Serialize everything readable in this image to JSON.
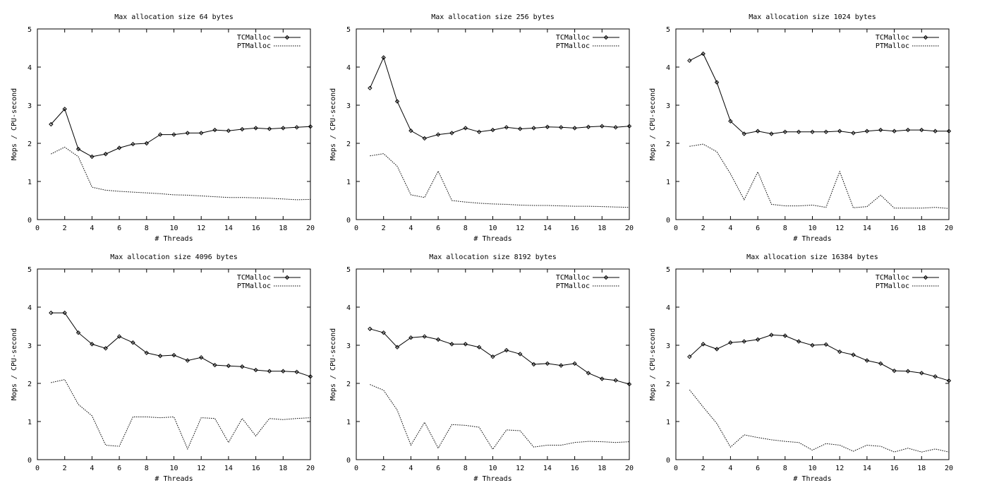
{
  "chart_data": [
    {
      "type": "line",
      "title": "Max allocation size 64 bytes",
      "xlabel": "# Threads",
      "ylabel": "Mops / CPU-second",
      "xlim": [
        0,
        20
      ],
      "ylim": [
        0,
        5
      ],
      "xticks": [
        "0",
        "2",
        "4",
        "6",
        "8",
        "10",
        "12",
        "14",
        "16",
        "18",
        "20"
      ],
      "yticks": [
        "0",
        "1",
        "2",
        "3",
        "4",
        "5"
      ],
      "legend_position": "top-right",
      "x": [
        1,
        2,
        3,
        4,
        5,
        6,
        7,
        8,
        9,
        10,
        11,
        12,
        13,
        14,
        15,
        16,
        17,
        18,
        19,
        20
      ],
      "series": [
        {
          "name": "TCMalloc",
          "style": "solid-markers",
          "values": [
            2.5,
            2.9,
            1.85,
            1.65,
            1.72,
            1.88,
            1.98,
            2.0,
            2.23,
            2.23,
            2.27,
            2.27,
            2.35,
            2.33,
            2.37,
            2.4,
            2.38,
            2.4,
            2.42,
            2.44
          ]
        },
        {
          "name": "PTMalloc",
          "style": "dotted",
          "values": [
            1.72,
            1.9,
            1.65,
            0.85,
            0.77,
            0.74,
            0.72,
            0.7,
            0.68,
            0.65,
            0.64,
            0.62,
            0.6,
            0.58,
            0.58,
            0.57,
            0.56,
            0.54,
            0.52,
            0.53
          ]
        }
      ]
    },
    {
      "type": "line",
      "title": "Max allocation size 256 bytes",
      "xlabel": "# Threads",
      "ylabel": "Mops / CPU-second",
      "xlim": [
        0,
        20
      ],
      "ylim": [
        0,
        5
      ],
      "xticks": [
        "0",
        "2",
        "4",
        "6",
        "8",
        "10",
        "12",
        "14",
        "16",
        "18",
        "20"
      ],
      "yticks": [
        "0",
        "1",
        "2",
        "3",
        "4",
        "5"
      ],
      "legend_position": "top-right",
      "x": [
        1,
        2,
        3,
        4,
        5,
        6,
        7,
        8,
        9,
        10,
        11,
        12,
        13,
        14,
        15,
        16,
        17,
        18,
        19,
        20
      ],
      "series": [
        {
          "name": "TCMalloc",
          "style": "solid-markers",
          "values": [
            3.45,
            4.25,
            3.1,
            2.33,
            2.13,
            2.23,
            2.27,
            2.4,
            2.3,
            2.35,
            2.42,
            2.38,
            2.4,
            2.43,
            2.42,
            2.4,
            2.43,
            2.45,
            2.42,
            2.45
          ]
        },
        {
          "name": "PTMalloc",
          "style": "dotted",
          "values": [
            1.67,
            1.73,
            1.4,
            0.65,
            0.58,
            1.27,
            0.5,
            0.46,
            0.43,
            0.41,
            0.4,
            0.38,
            0.37,
            0.37,
            0.36,
            0.35,
            0.35,
            0.34,
            0.33,
            0.32
          ]
        }
      ]
    },
    {
      "type": "line",
      "title": "Max allocation size 1024 bytes",
      "xlabel": "# Threads",
      "ylabel": "Mops / CPU-second",
      "xlim": [
        0,
        20
      ],
      "ylim": [
        0,
        5
      ],
      "xticks": [
        "0",
        "2",
        "4",
        "6",
        "8",
        "10",
        "12",
        "14",
        "16",
        "18",
        "20"
      ],
      "yticks": [
        "0",
        "1",
        "2",
        "3",
        "4",
        "5"
      ],
      "legend_position": "top-right",
      "x": [
        1,
        2,
        3,
        4,
        5,
        6,
        7,
        8,
        9,
        10,
        11,
        12,
        13,
        14,
        15,
        16,
        17,
        18,
        19,
        20
      ],
      "series": [
        {
          "name": "TCMalloc",
          "style": "solid-markers",
          "values": [
            4.17,
            4.35,
            3.6,
            2.58,
            2.25,
            2.32,
            2.25,
            2.3,
            2.3,
            2.3,
            2.3,
            2.32,
            2.27,
            2.32,
            2.35,
            2.32,
            2.35,
            2.35,
            2.32,
            2.32
          ]
        },
        {
          "name": "PTMalloc",
          "style": "dotted",
          "values": [
            1.92,
            1.98,
            1.78,
            1.2,
            0.52,
            1.25,
            0.4,
            0.36,
            0.36,
            0.38,
            0.32,
            1.26,
            0.31,
            0.34,
            0.64,
            0.3,
            0.3,
            0.3,
            0.32,
            0.29
          ]
        }
      ]
    },
    {
      "type": "line",
      "title": "Max allocation size 4096 bytes",
      "xlabel": "# Threads",
      "ylabel": "Mops / CPU-second",
      "xlim": [
        0,
        20
      ],
      "ylim": [
        0,
        5
      ],
      "xticks": [
        "0",
        "2",
        "4",
        "6",
        "8",
        "10",
        "12",
        "14",
        "16",
        "18",
        "20"
      ],
      "yticks": [
        "0",
        "1",
        "2",
        "3",
        "4",
        "5"
      ],
      "legend_position": "top-right",
      "x": [
        1,
        2,
        3,
        4,
        5,
        6,
        7,
        8,
        9,
        10,
        11,
        12,
        13,
        14,
        15,
        16,
        17,
        18,
        19,
        20
      ],
      "series": [
        {
          "name": "TCMalloc",
          "style": "solid-markers",
          "values": [
            3.85,
            3.85,
            3.33,
            3.03,
            2.92,
            3.23,
            3.07,
            2.8,
            2.72,
            2.74,
            2.6,
            2.68,
            2.48,
            2.46,
            2.44,
            2.35,
            2.32,
            2.32,
            2.3,
            2.18
          ]
        },
        {
          "name": "PTMalloc",
          "style": "dotted",
          "values": [
            2.02,
            2.1,
            1.45,
            1.15,
            0.38,
            0.35,
            1.12,
            1.12,
            1.1,
            1.12,
            0.28,
            1.1,
            1.08,
            0.45,
            1.08,
            0.62,
            1.08,
            1.05,
            1.08,
            1.1
          ]
        }
      ]
    },
    {
      "type": "line",
      "title": "Max allocation size 8192 bytes",
      "xlabel": "# Threads",
      "ylabel": "Mops / CPU-second",
      "xlim": [
        0,
        20
      ],
      "ylim": [
        0,
        5
      ],
      "xticks": [
        "0",
        "2",
        "4",
        "6",
        "8",
        "10",
        "12",
        "14",
        "16",
        "18",
        "20"
      ],
      "yticks": [
        "0",
        "1",
        "2",
        "3",
        "4",
        "5"
      ],
      "legend_position": "top-right",
      "x": [
        1,
        2,
        3,
        4,
        5,
        6,
        7,
        8,
        9,
        10,
        11,
        12,
        13,
        14,
        15,
        16,
        17,
        18,
        19,
        20
      ],
      "series": [
        {
          "name": "TCMalloc",
          "style": "solid-markers",
          "values": [
            3.43,
            3.33,
            2.95,
            3.2,
            3.23,
            3.15,
            3.03,
            3.03,
            2.95,
            2.7,
            2.87,
            2.77,
            2.5,
            2.52,
            2.47,
            2.52,
            2.27,
            2.12,
            2.08,
            1.98
          ]
        },
        {
          "name": "PTMalloc",
          "style": "dotted",
          "values": [
            1.97,
            1.82,
            1.3,
            0.38,
            0.98,
            0.3,
            0.92,
            0.9,
            0.85,
            0.27,
            0.78,
            0.76,
            0.33,
            0.38,
            0.38,
            0.45,
            0.48,
            0.47,
            0.45,
            0.47
          ]
        }
      ]
    },
    {
      "type": "line",
      "title": "Max allocation size 16384 bytes",
      "xlabel": "# Threads",
      "ylabel": "Mops / CPU-second",
      "xlim": [
        0,
        20
      ],
      "ylim": [
        0,
        5
      ],
      "xticks": [
        "0",
        "2",
        "4",
        "6",
        "8",
        "10",
        "12",
        "14",
        "16",
        "18",
        "20"
      ],
      "yticks": [
        "0",
        "1",
        "2",
        "3",
        "4",
        "5"
      ],
      "legend_position": "top-right",
      "x": [
        1,
        2,
        3,
        4,
        5,
        6,
        7,
        8,
        9,
        10,
        11,
        12,
        13,
        14,
        15,
        16,
        17,
        18,
        19,
        20
      ],
      "series": [
        {
          "name": "TCMalloc",
          "style": "solid-markers",
          "values": [
            2.7,
            3.03,
            2.9,
            3.07,
            3.1,
            3.15,
            3.27,
            3.25,
            3.1,
            3.0,
            3.02,
            2.83,
            2.75,
            2.6,
            2.52,
            2.33,
            2.32,
            2.27,
            2.18,
            2.07
          ]
        },
        {
          "name": "PTMalloc",
          "style": "dotted",
          "values": [
            1.83,
            1.38,
            0.95,
            0.33,
            0.65,
            0.58,
            0.52,
            0.48,
            0.45,
            0.25,
            0.42,
            0.38,
            0.22,
            0.38,
            0.35,
            0.2,
            0.3,
            0.2,
            0.28,
            0.2
          ]
        }
      ]
    }
  ]
}
